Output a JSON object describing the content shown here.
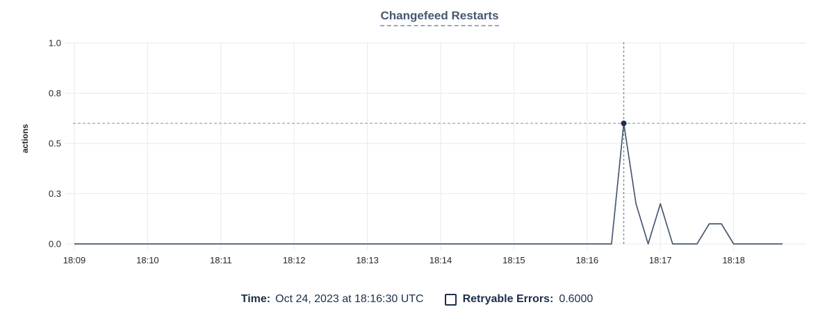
{
  "chart_data": {
    "type": "line",
    "title": "Changefeed Restarts",
    "ylabel": "actions",
    "ylim": [
      0,
      1
    ],
    "y_ticks": [
      {
        "label": "0.0",
        "value": 0
      },
      {
        "label": "0.3",
        "value": 0.25
      },
      {
        "label": "0.5",
        "value": 0.5
      },
      {
        "label": "0.8",
        "value": 0.75
      },
      {
        "label": "1.0",
        "value": 1.0
      }
    ],
    "x_ticks": [
      {
        "label": "18:09",
        "offset_seconds": 0
      },
      {
        "label": "18:10",
        "offset_seconds": 60
      },
      {
        "label": "18:11",
        "offset_seconds": 120
      },
      {
        "label": "18:12",
        "offset_seconds": 180
      },
      {
        "label": "18:13",
        "offset_seconds": 240
      },
      {
        "label": "18:14",
        "offset_seconds": 300
      },
      {
        "label": "18:15",
        "offset_seconds": 360
      },
      {
        "label": "18:16",
        "offset_seconds": 420
      },
      {
        "label": "18:17",
        "offset_seconds": 480
      },
      {
        "label": "18:18",
        "offset_seconds": 540
      }
    ],
    "sample_interval_seconds": 10,
    "series": [
      {
        "name": "Retryable Errors",
        "color": "#475872",
        "points": [
          [
            0,
            0
          ],
          [
            440,
            0
          ],
          [
            450,
            0.6
          ],
          [
            460,
            0.2
          ],
          [
            470,
            0
          ],
          [
            480,
            0.2
          ],
          [
            490,
            0
          ],
          [
            510,
            0
          ],
          [
            520,
            0.1
          ],
          [
            530,
            0.1
          ],
          [
            540,
            0
          ],
          [
            580,
            0
          ]
        ]
      }
    ],
    "crosshair": {
      "time": "18:16:30",
      "t_seconds": 450,
      "value": 0.6,
      "h_line_color": "#93a5b8",
      "v_line_color": "#76839a",
      "dot_color": "#1f2d49"
    },
    "grid": {
      "on": true,
      "color": "#e8e9eb"
    },
    "legend_position": "bottom"
  },
  "legend": {
    "time_label": "Time:",
    "time_value": "Oct 24, 2023 at 18:16:30 UTC",
    "series_label": "Retryable Errors:",
    "series_value": "0.6000",
    "checkbox_icon": "empty-square",
    "text_color": "#1c2e4a"
  },
  "colors": {
    "title_text": "#475872",
    "title_underline": "#93a9c8",
    "axis_text": "#22272c",
    "background": "#ffffff"
  }
}
